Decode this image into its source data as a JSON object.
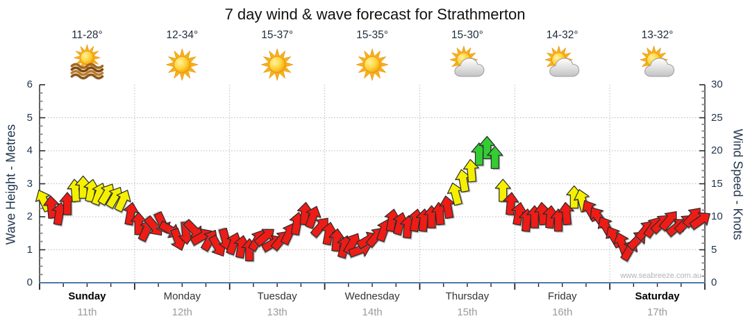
{
  "title": "7 day wind & wave forecast for Strathmerton",
  "watermark": "www.seabreeze.com.au",
  "axes": {
    "left_label": "Wave Height - Metres",
    "right_label": "Wind Speed - Knots",
    "left_ticks": [
      0,
      1,
      2,
      3,
      4,
      5,
      6
    ],
    "right_ticks": [
      0,
      5,
      10,
      15,
      20,
      25,
      30
    ]
  },
  "days": [
    {
      "name": "Sunday",
      "date": "11th",
      "temp": "11-28°",
      "icon": "sun-over-water",
      "bold": true
    },
    {
      "name": "Monday",
      "date": "12th",
      "temp": "12-34°",
      "icon": "sunny",
      "bold": false
    },
    {
      "name": "Tuesday",
      "date": "13th",
      "temp": "15-37°",
      "icon": "sunny",
      "bold": false
    },
    {
      "name": "Wednesday",
      "date": "14th",
      "temp": "15-35°",
      "icon": "sunny",
      "bold": false
    },
    {
      "name": "Thursday",
      "date": "15th",
      "temp": "15-30°",
      "icon": "partly-cloudy",
      "bold": false
    },
    {
      "name": "Friday",
      "date": "16th",
      "temp": "14-32°",
      "icon": "partly-cloudy",
      "bold": false
    },
    {
      "name": "Saturday",
      "date": "17th",
      "temp": "13-32°",
      "icon": "partly-cloudy",
      "bold": true
    }
  ],
  "colors": {
    "red": "#ed1c16",
    "yellow": "#f5f000",
    "green": "#33cc33",
    "arrow_outline": "#2a2a2a",
    "baseline": "#4d79a9",
    "axis_line": "#2b2b2b",
    "grid": "#b8b8b8",
    "minor_tick": "#8f8f8f"
  },
  "chart_data": {
    "type": "scatter",
    "subtype": "wind-direction-arrows",
    "title": "7 day wind & wave forecast for Strathmerton",
    "x_unit": "days",
    "x_categories": [
      "Sunday 11th",
      "Monday 12th",
      "Tuesday 13th",
      "Wednesday 14th",
      "Thursday 15th",
      "Friday 16th",
      "Saturday 17th"
    ],
    "y_left": {
      "label": "Wave Height - Metres",
      "range": [
        0,
        6
      ]
    },
    "y_right": {
      "label": "Wind Speed - Knots",
      "range": [
        0,
        30
      ]
    },
    "grid": "dotted, horizontal at 1-5 m, vertical at day boundaries",
    "legend": "arrow colour encodes wind strength: red < 12.5 kn, yellow 12.5-17.5 kn, green > 17.5 kn; arrow angle = wind direction (0 = up)",
    "arrows": [
      [
        0.042,
        12.5,
        -25,
        "y"
      ],
      [
        0.125,
        11.5,
        -5,
        "r"
      ],
      [
        0.208,
        10.5,
        10,
        "r"
      ],
      [
        0.292,
        12,
        0,
        "r"
      ],
      [
        0.375,
        14,
        -5,
        "y"
      ],
      [
        0.458,
        14.5,
        0,
        "y"
      ],
      [
        0.542,
        14,
        10,
        "y"
      ],
      [
        0.625,
        13.5,
        20,
        "y"
      ],
      [
        0.708,
        13.5,
        30,
        "y"
      ],
      [
        0.792,
        13,
        30,
        "y"
      ],
      [
        0.875,
        12.5,
        25,
        "y"
      ],
      [
        0.958,
        10.5,
        10,
        "r"
      ],
      [
        1.042,
        9,
        0,
        "r"
      ],
      [
        1.125,
        8,
        25,
        "r"
      ],
      [
        1.208,
        8.5,
        140,
        "r"
      ],
      [
        1.292,
        9,
        155,
        "r"
      ],
      [
        1.375,
        8,
        120,
        "r"
      ],
      [
        1.458,
        6.5,
        160,
        "r"
      ],
      [
        1.542,
        7.5,
        175,
        "r"
      ],
      [
        1.625,
        8,
        135,
        "r"
      ],
      [
        1.708,
        7,
        60,
        "r"
      ],
      [
        1.792,
        6.5,
        30,
        "r"
      ],
      [
        1.875,
        5.5,
        150,
        "r"
      ],
      [
        1.958,
        6.5,
        165,
        "r"
      ],
      [
        2.042,
        6,
        20,
        "r"
      ],
      [
        2.125,
        5.5,
        10,
        "r"
      ],
      [
        2.208,
        5,
        0,
        "r"
      ],
      [
        2.292,
        6.5,
        30,
        "r"
      ],
      [
        2.375,
        7,
        50,
        "r"
      ],
      [
        2.458,
        6,
        60,
        "r"
      ],
      [
        2.542,
        6.5,
        40,
        "r"
      ],
      [
        2.625,
        7.5,
        25,
        "r"
      ],
      [
        2.708,
        9,
        10,
        "r"
      ],
      [
        2.792,
        10.5,
        5,
        "r"
      ],
      [
        2.875,
        10,
        20,
        "r"
      ],
      [
        2.958,
        8.5,
        40,
        "r"
      ],
      [
        3.042,
        7.5,
        10,
        "r"
      ],
      [
        3.125,
        6.5,
        5,
        "r"
      ],
      [
        3.208,
        5.5,
        15,
        "r"
      ],
      [
        3.292,
        6,
        30,
        "r"
      ],
      [
        3.375,
        5,
        70,
        "r"
      ],
      [
        3.458,
        6.5,
        60,
        "r"
      ],
      [
        3.542,
        7,
        40,
        "r"
      ],
      [
        3.625,
        8,
        20,
        "r"
      ],
      [
        3.708,
        9.5,
        10,
        "r"
      ],
      [
        3.792,
        9,
        15,
        "r"
      ],
      [
        3.875,
        8.5,
        5,
        "r"
      ],
      [
        3.958,
        9.5,
        10,
        "r"
      ],
      [
        4.042,
        9.5,
        5,
        "r"
      ],
      [
        4.125,
        10,
        0,
        "r"
      ],
      [
        4.208,
        10.5,
        -5,
        "r"
      ],
      [
        4.292,
        11.5,
        -10,
        "r"
      ],
      [
        4.375,
        13.5,
        -15,
        "y"
      ],
      [
        4.458,
        15.5,
        -10,
        "y"
      ],
      [
        4.542,
        17,
        -5,
        "y"
      ],
      [
        4.625,
        19.5,
        0,
        "g"
      ],
      [
        4.708,
        20.5,
        0,
        "g"
      ],
      [
        4.792,
        19,
        0,
        "g"
      ],
      [
        4.875,
        14,
        0,
        "y"
      ],
      [
        4.958,
        12,
        5,
        "r"
      ],
      [
        5.042,
        10.5,
        10,
        "r"
      ],
      [
        5.125,
        9.5,
        5,
        "r"
      ],
      [
        5.208,
        10,
        0,
        "r"
      ],
      [
        5.292,
        10.5,
        -5,
        "r"
      ],
      [
        5.375,
        10,
        5,
        "r"
      ],
      [
        5.458,
        9.5,
        0,
        "r"
      ],
      [
        5.542,
        10.5,
        -5,
        "r"
      ],
      [
        5.625,
        13,
        0,
        "y"
      ],
      [
        5.708,
        12.5,
        -15,
        "y"
      ],
      [
        5.792,
        11,
        -30,
        "r"
      ],
      [
        5.875,
        10,
        -35,
        "r"
      ],
      [
        5.958,
        8.5,
        -30,
        "r"
      ],
      [
        6.042,
        7,
        -30,
        "r"
      ],
      [
        6.125,
        6,
        -20,
        "r"
      ],
      [
        6.208,
        5,
        30,
        "r"
      ],
      [
        6.292,
        6.5,
        45,
        "r"
      ],
      [
        6.375,
        8,
        40,
        "r"
      ],
      [
        6.458,
        8.5,
        35,
        "r"
      ],
      [
        6.542,
        9,
        45,
        "r"
      ],
      [
        6.625,
        9.5,
        40,
        "r"
      ],
      [
        6.708,
        8.5,
        50,
        "r"
      ],
      [
        6.792,
        9,
        45,
        "r"
      ],
      [
        6.875,
        10,
        40,
        "r"
      ],
      [
        6.958,
        9.5,
        55,
        "r"
      ]
    ]
  }
}
